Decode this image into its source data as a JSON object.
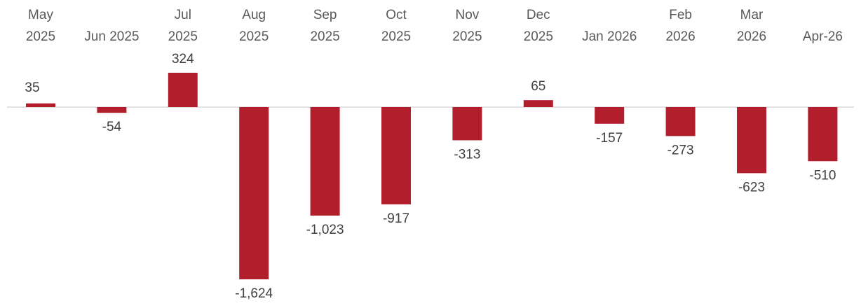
{
  "chart_data": {
    "type": "bar",
    "categories": [
      "May 2025",
      "Jun 2025",
      "Jul 2025",
      "Aug 2025",
      "Sep 2025",
      "Oct 2025",
      "Nov 2025",
      "Dec 2025",
      "Jan 2026",
      "Feb 2026",
      "Mar 2026",
      "Apr-26"
    ],
    "values": [
      35,
      -54,
      324,
      -1624,
      -1023,
      -917,
      -313,
      65,
      -157,
      -273,
      -623,
      -510
    ],
    "data_labels": [
      "35",
      "-54",
      "324",
      "-1,624",
      "-1,023",
      "-917",
      "-313",
      "65",
      "-157",
      "-273",
      "-623",
      "-510"
    ],
    "bar_color": "#b31e2c",
    "axis_line_color": "#d9d9d9",
    "legend": "none",
    "grid": false
  }
}
